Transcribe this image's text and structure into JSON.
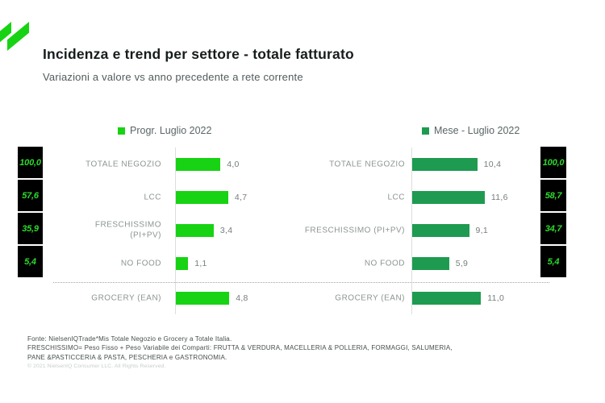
{
  "header": {
    "title": "Incidenza e trend per settore - totale fatturato",
    "subtitle": "Variazioni a valore vs anno precedente a rete corrente"
  },
  "colors": {
    "progr_green": "#17d313",
    "mese_green": "#1e9b50",
    "incidence_box_bg": "#000000",
    "incidence_text_green": "#2bdb2b"
  },
  "chart_data": [
    {
      "type": "bar",
      "orientation": "horizontal",
      "legend": "Progr. Luglio 2022",
      "bar_color": "#17d313",
      "categories": [
        "TOTALE NEGOZIO",
        "LCC",
        "FRESCHISSIMO\n(PI+PV)",
        "NO FOOD",
        "GROCERY (EAN)"
      ],
      "values": [
        4.0,
        4.7,
        3.4,
        1.1,
        4.8
      ],
      "value_labels": [
        "4,0",
        "4,7",
        "3,4",
        "1,1",
        "4,8"
      ],
      "incidence_values": [
        100.0,
        57.6,
        35.9,
        5.4
      ],
      "incidence_labels": [
        "100,0",
        "57,6",
        "35,9",
        "5,4"
      ],
      "xlim": [
        0,
        5.5
      ],
      "grid": false,
      "legend_position": "top"
    },
    {
      "type": "bar",
      "orientation": "horizontal",
      "legend": "Mese - Luglio 2022",
      "bar_color": "#1e9b50",
      "categories": [
        "TOTALE NEGOZIO",
        "LCC",
        "FRESCHISSIMO (PI+PV)",
        "NO FOOD",
        "GROCERY (EAN)"
      ],
      "values": [
        10.4,
        11.6,
        9.1,
        5.9,
        11.0
      ],
      "value_labels": [
        "10,4",
        "11,6",
        "9,1",
        "5,9",
        "11,0"
      ],
      "incidence_values": [
        100.0,
        58.7,
        34.7,
        5.4
      ],
      "incidence_labels": [
        "100,0",
        "58,7",
        "34,7",
        "5,4"
      ],
      "xlim": [
        0,
        13
      ],
      "grid": false,
      "legend_position": "top"
    }
  ],
  "footer": {
    "line1": "Fonte: NielsenIQTrade*Mis Totale Negozio e  Grocery a Totale Italia.",
    "line2": "FRESCHISSIMO= Peso Fisso + Peso Variabile dei Comparti: FRUTTA & VERDURA, MACELLERIA & POLLERIA, FORMAGGI, SALUMERIA,",
    "line3": "PANE &PASTICCERIA & PASTA, PESCHERIA e GASTRONOMIA.",
    "copyright": "© 2021 NielsenIQ Consumer LLC. All Rights Reserved."
  }
}
